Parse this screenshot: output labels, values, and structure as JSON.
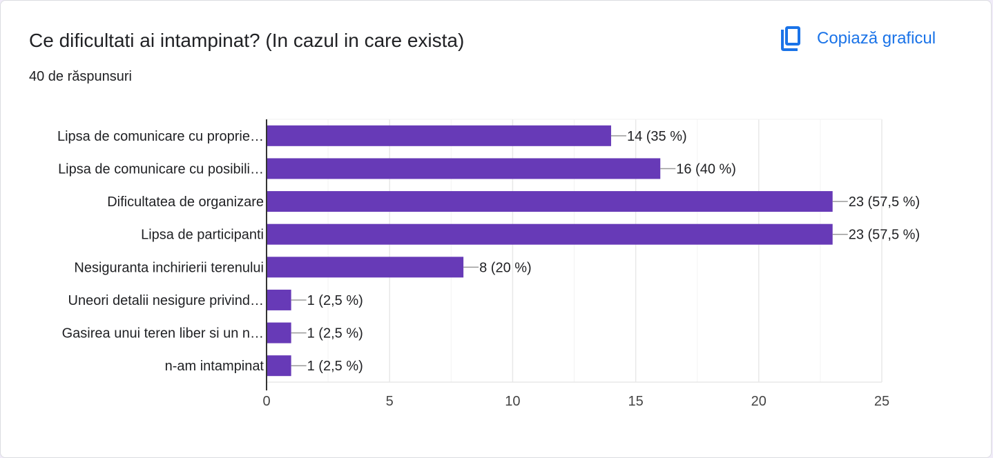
{
  "question": {
    "title": "Ce dificultati ai intampinat? (In cazul in care exista)",
    "responses": "40 de răspunsuri"
  },
  "copy_button": {
    "label": "Copiază graficul",
    "icon": "copy-icon"
  },
  "colors": {
    "bar": "#673ab7",
    "accent": "#1a73e8",
    "text": "#202124",
    "grid": "#e8e8e8"
  },
  "chart_data": {
    "type": "bar",
    "orientation": "horizontal",
    "categories": [
      "Lipsa de comunicare cu proprie…",
      "Lipsa de comunicare cu posibili…",
      "Dificultatea de organizare",
      "Lipsa de participanti",
      "Nesiguranta inchirierii terenului",
      "Uneori detalii nesigure privind…",
      "Gasirea unui teren liber si un n…",
      "n-am intampinat"
    ],
    "values": [
      14,
      16,
      23,
      23,
      8,
      1,
      1,
      1
    ],
    "data_labels": [
      "14 (35 %)",
      "16 (40 %)",
      "23 (57,5 %)",
      "23 (57,5 %)",
      "8 (20 %)",
      "1 (2,5 %)",
      "1 (2,5 %)",
      "1 (2,5 %)"
    ],
    "xlim": [
      0,
      25
    ],
    "xticks": [
      0,
      5,
      10,
      15,
      20,
      25
    ],
    "grid": true,
    "legend": "none"
  }
}
